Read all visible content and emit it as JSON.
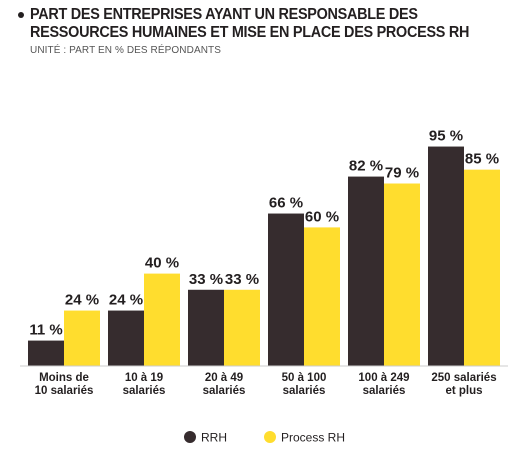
{
  "header": {
    "title": "PART DES ENTREPRISES AYANT UN RESPONSABLE DES RESSOURCES HUMAINES ET MISE EN PLACE DES PROCESS RH",
    "subtitle": "UNITÉ : PART EN % DES RÉPONDANTS"
  },
  "chart_data": {
    "type": "bar",
    "title": "PART DES ENTREPRISES AYANT UN RESPONSABLE DES RESSOURCES HUMAINES ET MISE EN PLACE DES PROCESS RH",
    "subtitle": "UNITÉ : PART EN % DES RÉPONDANTS",
    "categories": [
      [
        "Moins de",
        "10 salariés"
      ],
      [
        "10 à 19",
        "salariés"
      ],
      [
        "20 à 49",
        "salariés"
      ],
      [
        "50 à 100",
        "salariés"
      ],
      [
        "100 à 249",
        "salariés"
      ],
      [
        "250 salariés",
        "et plus"
      ]
    ],
    "series": [
      {
        "name": "RRH",
        "color": "#362c2e",
        "values": [
          11,
          24,
          33,
          66,
          82,
          95
        ],
        "labels": [
          "11 %",
          "24 %",
          "33 %",
          "66 %",
          "82 %",
          "95 %"
        ]
      },
      {
        "name": "Process RH",
        "color": "#ffdd2e",
        "values": [
          24,
          40,
          33,
          60,
          79,
          85
        ],
        "labels": [
          "24 %",
          "40 %",
          "33 %",
          "60 %",
          "79 %",
          "85 %"
        ]
      }
    ],
    "ylim": [
      0,
      100
    ],
    "grid": false,
    "legend_position": "bottom-center"
  }
}
